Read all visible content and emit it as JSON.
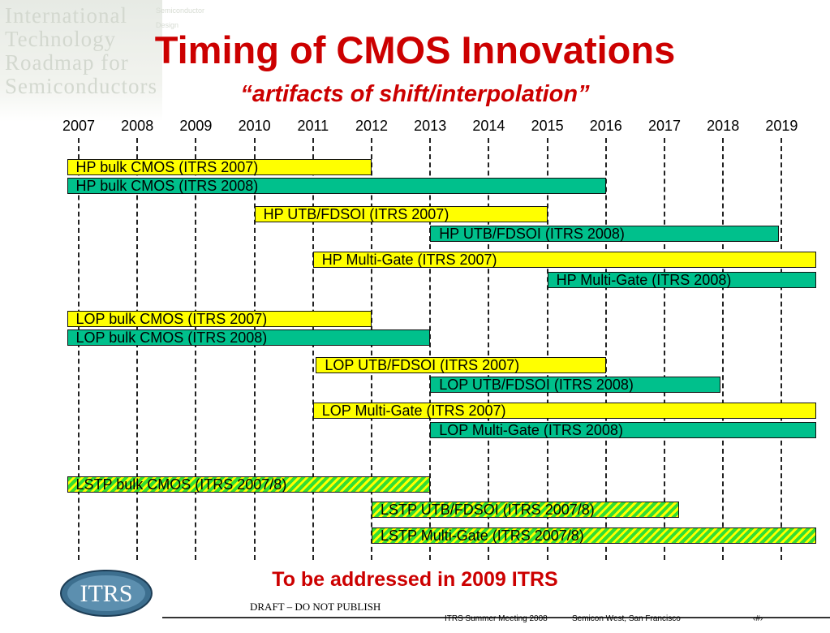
{
  "watermark": {
    "lines": [
      "International",
      "Technology",
      "Roadmap for",
      "Semiconductors"
    ],
    "small_text": [
      "Semiconductor",
      "Design"
    ]
  },
  "header": {
    "title": "Timing of CMOS Innovations",
    "subtitle": "“artifacts of shift/interpolation”"
  },
  "years": [
    "2007",
    "2008",
    "2009",
    "2010",
    "2011",
    "2012",
    "2013",
    "2014",
    "2015",
    "2016",
    "2017",
    "2018",
    "2019"
  ],
  "bars": [
    {
      "label": "HP bulk CMOS (ITRS 2007)",
      "start": 2006.8,
      "end": 2012.0,
      "style": "y2007"
    },
    {
      "label": "HP bulk CMOS (ITRS 2008)",
      "start": 2006.8,
      "end": 2016.0,
      "style": "y2008"
    },
    {
      "label": "HP UTB/FDSOI (ITRS 2007)",
      "start": 2010.0,
      "end": 2015.0,
      "style": "y2007"
    },
    {
      "label": "HP UTB/FDSOI (ITRS 2008)",
      "start": 2013.0,
      "end": 2018.95,
      "style": "y2008"
    },
    {
      "label": "HP Multi-Gate (ITRS 2007)",
      "start": 2011.0,
      "end": 2019.6,
      "style": "y2007"
    },
    {
      "label": "HP Multi-Gate (ITRS 2008)",
      "start": 2015.0,
      "end": 2019.6,
      "style": "y2008"
    },
    {
      "label": "LOP bulk CMOS (ITRS 2007)",
      "start": 2006.8,
      "end": 2012.0,
      "style": "y2007"
    },
    {
      "label": "LOP bulk CMOS (ITRS 2008)",
      "start": 2006.8,
      "end": 2013.0,
      "style": "y2008"
    },
    {
      "label": "LOP UTB/FDSOI (ITRS 2007)",
      "start": 2011.05,
      "end": 2016.0,
      "style": "y2007"
    },
    {
      "label": "LOP UTB/FDSOI (ITRS 2008)",
      "start": 2013.0,
      "end": 2017.95,
      "style": "y2008"
    },
    {
      "label": "LOP Multi-Gate (ITRS 2007)",
      "start": 2011.0,
      "end": 2019.6,
      "style": "y2007"
    },
    {
      "label": "LOP Multi-Gate (ITRS 2008)",
      "start": 2013.0,
      "end": 2019.6,
      "style": "y2008"
    },
    {
      "label": "LSTP bulk CMOS (ITRS 2007/8)",
      "start": 2006.8,
      "end": 2013.0,
      "style": "hatch"
    },
    {
      "label": "LSTP UTB/FDSOI (ITRS 2007/8)",
      "start": 2012.0,
      "end": 2017.25,
      "style": "hatch"
    },
    {
      "label": "LSTP Multi-Gate (ITRS 2007/8)",
      "start": 2012.0,
      "end": 2019.6,
      "style": "hatch"
    }
  ],
  "legend_colors": {
    "itrs_2007": "#ffff00",
    "itrs_2008": "#00c08c",
    "itrs_2007_8_hatch": [
      "#33dd33",
      "#ffff00"
    ]
  },
  "footer": {
    "note": "To be addressed in 2009 ITRS",
    "logo_text": "ITRS",
    "draft": "DRAFT – DO NOT PUBLISH",
    "meeting": "ITRS Summer Meeting  2008",
    "location": "Semicon West, San Francisco",
    "page": "‹#›"
  }
}
